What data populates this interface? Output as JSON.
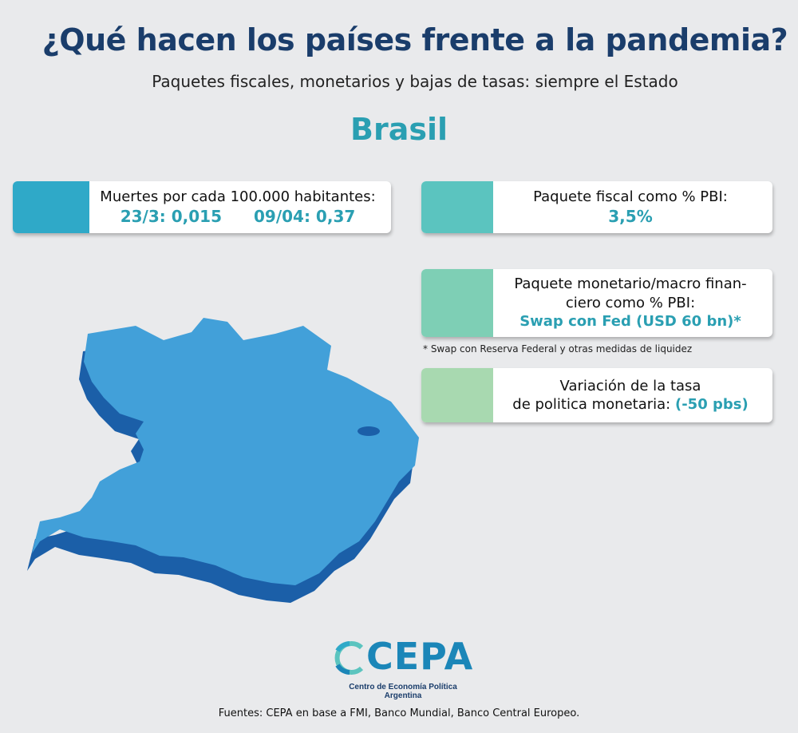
{
  "header": {
    "title": "¿Qué hacen los países frente a la pandemia?",
    "subtitle": "Paquetes fiscales, monetarios y bajas de tasas: siempre el Estado",
    "country": "Brasil"
  },
  "cards": {
    "deaths": {
      "label": "Muertes por cada 100.000 habitantes:",
      "value_1": "23/3: 0,015",
      "value_2": "09/04: 0,37",
      "color": "#2fa9c8"
    },
    "fiscal": {
      "label": "Paquete fiscal como % PBI:",
      "value": "3,5%",
      "color": "#5bc4bf"
    },
    "monetary": {
      "label_line1": "Paquete monetario/macro finan-",
      "label_line2": "ciero como % PBI:",
      "value": "Swap con Fed (USD 60 bn)*",
      "color": "#7ecfb5"
    },
    "rate": {
      "label_line1": "Variación de la tasa",
      "label_line2": "de politica monetaria:",
      "value": "(-50 pbs)",
      "color": "#a8d9b0"
    }
  },
  "note": "* Swap con Reserva Federal y otras medidas de liquidez",
  "map": {
    "region": "Brasil",
    "top_color": "#42a0d9",
    "side_color": "#1b5fa8"
  },
  "logo": {
    "text": "CEPA",
    "subtext": "Centro de Economía Política Argentina",
    "color": "#1b86b8"
  },
  "sources": "Fuentes: CEPA en base a FMI, Banco Mundial, Banco Central Europeo."
}
